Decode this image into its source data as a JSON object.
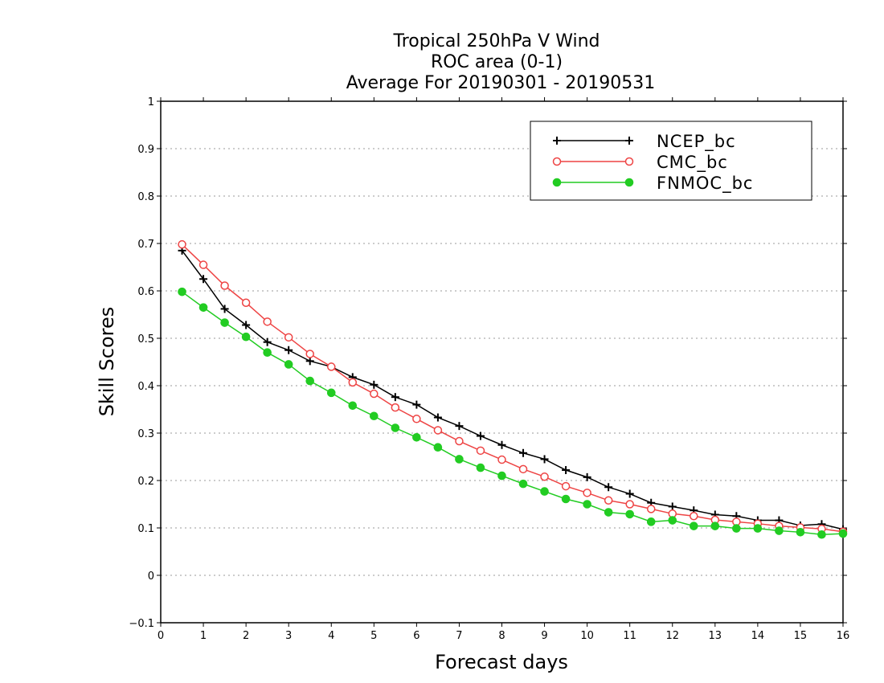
{
  "chart_data": {
    "type": "line",
    "title": [
      "Tropical 250hPa V Wind",
      "ROC area (0-1)",
      "Average For 20190301 - 20190531"
    ],
    "xlabel": "Forecast days",
    "ylabel": "Skill Scores",
    "xlim": [
      0,
      16
    ],
    "ylim": [
      -0.1,
      1
    ],
    "xticks": [
      "0",
      "1",
      "2",
      "3",
      "4",
      "5",
      "6",
      "7",
      "8",
      "9",
      "10",
      "11",
      "12",
      "13",
      "14",
      "15",
      "16"
    ],
    "yticks": [
      "−0.1",
      "0",
      "0.1",
      "0.2",
      "0.3",
      "0.4",
      "0.5",
      "0.6",
      "0.7",
      "0.8",
      "0.9",
      "1"
    ],
    "grid": "dotted horizontal",
    "legend_position": "top-right",
    "x": [
      0.5,
      1,
      1.5,
      2,
      2.5,
      3,
      3.5,
      4,
      4.5,
      5,
      5.5,
      6,
      6.5,
      7,
      7.5,
      8,
      8.5,
      9,
      9.5,
      10,
      10.5,
      11,
      11.5,
      12,
      12.5,
      13,
      13.5,
      14,
      14.5,
      15,
      15.5,
      16
    ],
    "series": [
      {
        "name": "NCEP_bc",
        "color": "#000000",
        "marker": "plus",
        "values": [
          0.685,
          0.625,
          0.562,
          0.528,
          0.492,
          0.475,
          0.452,
          0.44,
          0.418,
          0.402,
          0.376,
          0.36,
          0.333,
          0.315,
          0.294,
          0.275,
          0.258,
          0.245,
          0.222,
          0.207,
          0.186,
          0.172,
          0.153,
          0.145,
          0.137,
          0.128,
          0.125,
          0.116,
          0.116,
          0.105,
          0.108,
          0.097
        ]
      },
      {
        "name": "CMC_bc",
        "color": "#ee4444",
        "marker": "open-circle",
        "values": [
          0.698,
          0.655,
          0.611,
          0.575,
          0.535,
          0.502,
          0.467,
          0.44,
          0.407,
          0.383,
          0.354,
          0.33,
          0.306,
          0.283,
          0.263,
          0.244,
          0.224,
          0.208,
          0.188,
          0.174,
          0.158,
          0.15,
          0.14,
          0.13,
          0.125,
          0.117,
          0.113,
          0.109,
          0.104,
          0.101,
          0.098,
          0.092
        ]
      },
      {
        "name": "FNMOC_bc",
        "color": "#22cc22",
        "marker": "filled-circle",
        "values": [
          0.598,
          0.565,
          0.533,
          0.503,
          0.47,
          0.445,
          0.41,
          0.385,
          0.358,
          0.336,
          0.311,
          0.291,
          0.27,
          0.245,
          0.227,
          0.21,
          0.193,
          0.177,
          0.161,
          0.15,
          0.133,
          0.129,
          0.113,
          0.116,
          0.104,
          0.104,
          0.099,
          0.099,
          0.094,
          0.091,
          0.086,
          0.088
        ]
      }
    ]
  }
}
